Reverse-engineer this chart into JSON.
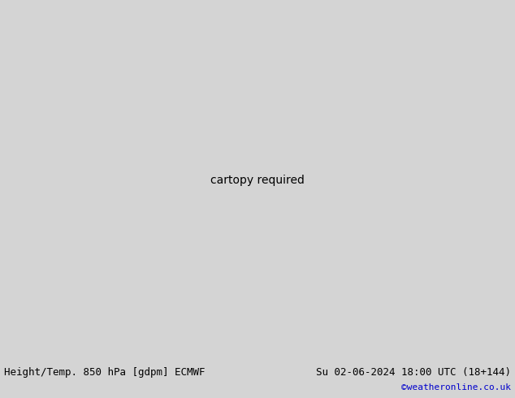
{
  "title_left": "Height/Temp. 850 hPa [gdpm] ECMWF",
  "title_right": "Su 02-06-2024 18:00 UTC (18+144)",
  "watermark": "©weatheronline.co.uk",
  "figsize": [
    6.34,
    4.9
  ],
  "dpi": 100,
  "extent": [
    -30,
    75,
    -40,
    40
  ],
  "land_color": "#c8f0a0",
  "ocean_color": "#d4d4d4",
  "border_color": "#888888",
  "coast_color": "#888888",
  "bottom_bg": "#ffffff",
  "font_size_title": 9,
  "font_size_watermark": 8,
  "font_size_label": 7
}
